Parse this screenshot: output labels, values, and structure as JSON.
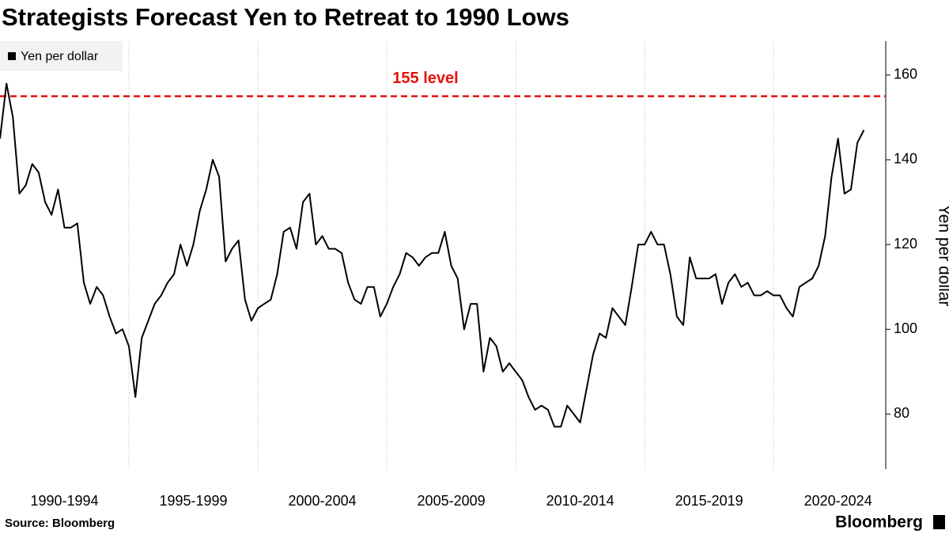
{
  "chart_data": {
    "type": "line",
    "title": "Strategists Forecast Yen to Retreat to 1990 Lows",
    "source": "Source: Bloomberg",
    "brand": "Bloomberg",
    "y_label": "Yen per dollar",
    "legend": "top-left",
    "series": [
      {
        "name": "Yen per dollar",
        "color": "#000000",
        "values": [
          145,
          158,
          150,
          132,
          134,
          139,
          137,
          130,
          127,
          133,
          124,
          124,
          125,
          111,
          106,
          110,
          108,
          103,
          99,
          100,
          96,
          84,
          98,
          102,
          106,
          108,
          111,
          113,
          120,
          115,
          120,
          128,
          133,
          140,
          136,
          116,
          119,
          121,
          107,
          102,
          105,
          106,
          107,
          113,
          123,
          124,
          119,
          130,
          132,
          120,
          122,
          119,
          119,
          118,
          111,
          107,
          106,
          110,
          110,
          103,
          106,
          110,
          113,
          118,
          117,
          115,
          117,
          118,
          118,
          123,
          115,
          112,
          100,
          106,
          106,
          90,
          98,
          96,
          90,
          92,
          90,
          88,
          84,
          81,
          82,
          81,
          77,
          77,
          82,
          80,
          78,
          86,
          94,
          99,
          98,
          105,
          103,
          101,
          110,
          120,
          120,
          123,
          120,
          120,
          113,
          103,
          101,
          117,
          112,
          112,
          112,
          113,
          106,
          111,
          113,
          110,
          111,
          108,
          108,
          109,
          108,
          108,
          105,
          103,
          110,
          111,
          112,
          115,
          122,
          136,
          145,
          132,
          133,
          144,
          147
        ]
      }
    ],
    "x": [
      1990,
      1990.25,
      1990.5,
      1990.75,
      1991,
      1991.25,
      1991.5,
      1991.75,
      1992,
      1992.25,
      1992.5,
      1992.75,
      1993,
      1993.25,
      1993.5,
      1993.75,
      1994,
      1994.25,
      1994.5,
      1994.75,
      1995,
      1995.25,
      1995.5,
      1995.75,
      1996,
      1996.25,
      1996.5,
      1996.75,
      1997,
      1997.25,
      1997.5,
      1997.75,
      1998,
      1998.25,
      1998.5,
      1998.75,
      1999,
      1999.25,
      1999.5,
      1999.75,
      2000,
      2000.25,
      2000.5,
      2000.75,
      2001,
      2001.25,
      2001.5,
      2001.75,
      2002,
      2002.25,
      2002.5,
      2002.75,
      2003,
      2003.25,
      2003.5,
      2003.75,
      2004,
      2004.25,
      2004.5,
      2004.75,
      2005,
      2005.25,
      2005.5,
      2005.75,
      2006,
      2006.25,
      2006.5,
      2006.75,
      2007,
      2007.25,
      2007.5,
      2007.75,
      2008,
      2008.25,
      2008.5,
      2008.75,
      2009,
      2009.25,
      2009.5,
      2009.75,
      2010,
      2010.25,
      2010.5,
      2010.75,
      2011,
      2011.25,
      2011.5,
      2011.75,
      2012,
      2012.25,
      2012.5,
      2012.75,
      2013,
      2013.25,
      2013.5,
      2013.75,
      2014,
      2014.25,
      2014.5,
      2014.75,
      2015,
      2015.25,
      2015.5,
      2015.75,
      2016,
      2016.25,
      2016.5,
      2016.75,
      2017,
      2017.25,
      2017.5,
      2017.75,
      2018,
      2018.25,
      2018.5,
      2018.75,
      2019,
      2019.25,
      2019.5,
      2019.75,
      2020,
      2020.25,
      2020.5,
      2020.75,
      2021,
      2021.25,
      2021.5,
      2021.75,
      2022,
      2022.25,
      2022.5,
      2022.75,
      2023,
      2023.25,
      2023.5
    ],
    "xlim": [
      1990,
      2024.35
    ],
    "xticks": [
      {
        "value": 1992.5,
        "label": "1990-1994"
      },
      {
        "value": 1997.5,
        "label": "1995-1999"
      },
      {
        "value": 2002.5,
        "label": "2000-2004"
      },
      {
        "value": 2007.5,
        "label": "2005-2009"
      },
      {
        "value": 2012.5,
        "label": "2010-2014"
      },
      {
        "value": 2017.5,
        "label": "2015-2019"
      },
      {
        "value": 2022.5,
        "label": "2020-2024"
      }
    ],
    "xgrid": [
      1995,
      2000,
      2005,
      2010,
      2015,
      2020
    ],
    "ylim": [
      67,
      168
    ],
    "yticks": [
      80,
      100,
      120,
      140,
      160
    ],
    "reference_line": {
      "value": 155,
      "label": "155 level",
      "color": "#e3120b"
    }
  }
}
